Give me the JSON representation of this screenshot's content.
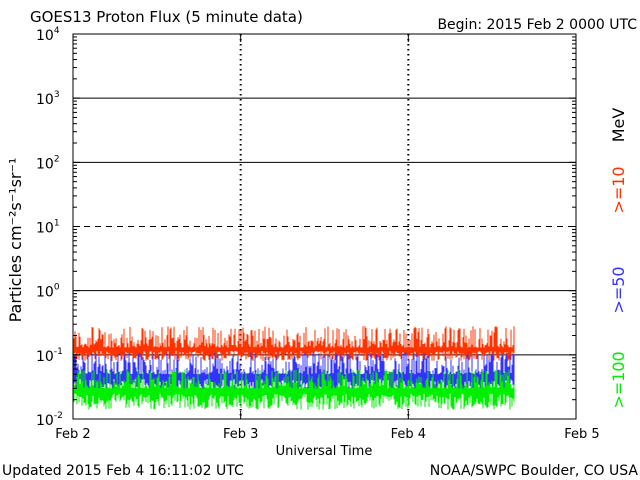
{
  "title": "GOES13 Proton Flux (5 minute data)",
  "begin_label": "Begin: 2015 Feb 2 0000 UTC",
  "updated": "Updated 2015 Feb  4 16:11:02 UTC",
  "credit": "NOAA/SWPC Boulder, CO USA",
  "colors": {
    "ge10": "#ff3300",
    "ge50": "#3333ff",
    "ge100": "#00ee00",
    "axis": "#000000"
  },
  "chart_data": {
    "type": "line",
    "title": "GOES13 Proton Flux (5 minute data)",
    "xlabel": "Universal Time",
    "ylabel": "Particles cm⁻²s⁻¹sr⁻¹",
    "y_scale": "log",
    "ylim": [
      0.01,
      10000
    ],
    "xlim": [
      "2015-02-02",
      "2015-02-05"
    ],
    "x_ticks": [
      "Feb 2",
      "Feb 3",
      "Feb 4",
      "Feb 5"
    ],
    "y_ticks": [
      {
        "value": 0.01,
        "base": "10",
        "exp": "-2"
      },
      {
        "value": 0.1,
        "base": "10",
        "exp": "-1"
      },
      {
        "value": 1,
        "base": "10",
        "exp": "0"
      },
      {
        "value": 10,
        "base": "10",
        "exp": "1"
      },
      {
        "value": 100,
        "base": "10",
        "exp": "2"
      },
      {
        "value": 1000,
        "base": "10",
        "exp": "3"
      },
      {
        "value": 10000,
        "base": "10",
        "exp": "4"
      }
    ],
    "threshold_lines": [
      {
        "value": 0.1,
        "style": "solid"
      },
      {
        "value": 1,
        "style": "solid"
      },
      {
        "value": 10,
        "style": "dashed"
      },
      {
        "value": 100,
        "style": "solid"
      },
      {
        "value": 1000,
        "style": "solid"
      }
    ],
    "data_start": "2015-02-02 00:00",
    "data_end": "2015-02-04 15:10",
    "right_legend": [
      {
        "label": "MeV",
        "color": "#000000"
      },
      {
        "label": ">=10",
        "color": "#ff3300"
      },
      {
        "label": ">=50",
        "color": "#3333ff"
      },
      {
        "label": ">=100",
        "color": "#00ee00"
      }
    ],
    "series": [
      {
        "name": ">=10",
        "color": "#ff3300",
        "typical": 0.13,
        "min": 0.08,
        "max": 0.28
      },
      {
        "name": ">=50",
        "color": "#3333ff",
        "typical": 0.05,
        "min": 0.025,
        "max": 0.11
      },
      {
        "name": ">=100",
        "color": "#00ee00",
        "typical": 0.03,
        "min": 0.014,
        "max": 0.06
      }
    ]
  }
}
